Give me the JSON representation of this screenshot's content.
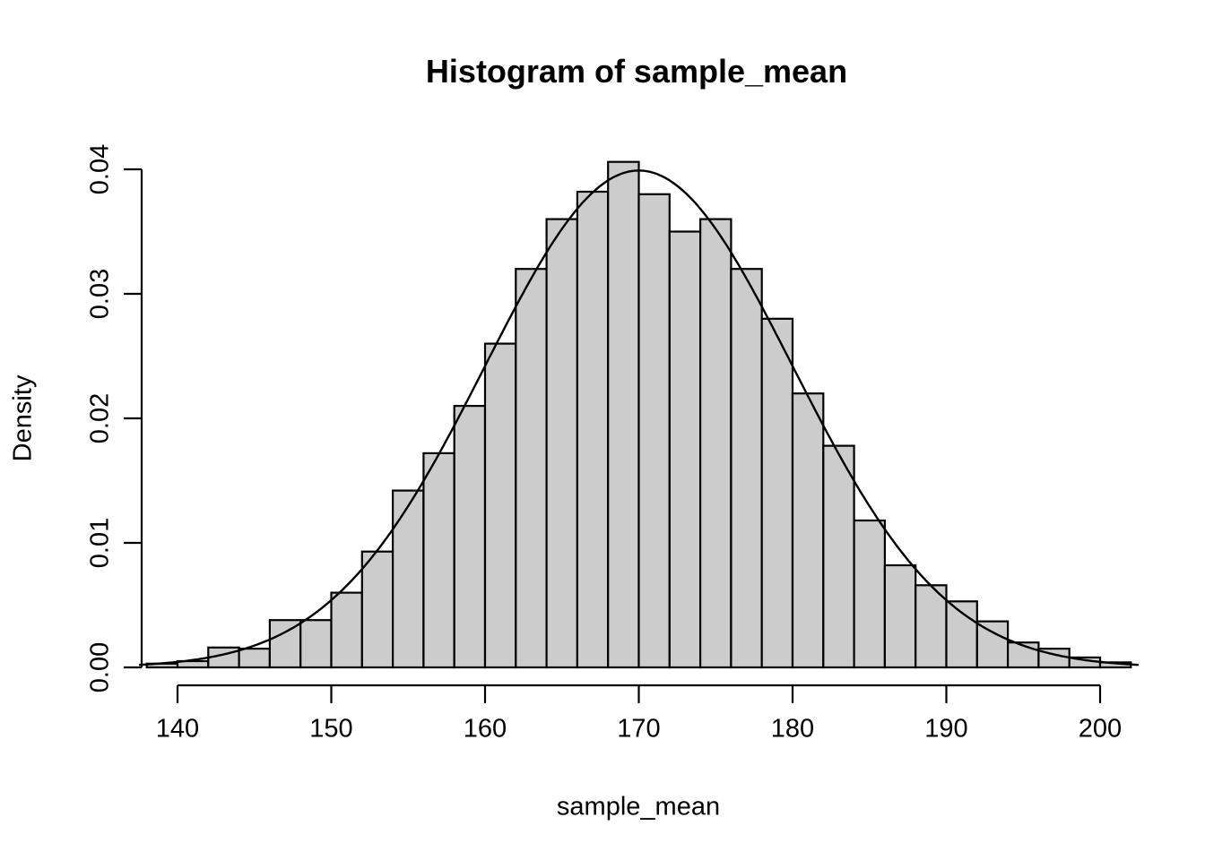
{
  "chart_data": {
    "type": "histogram",
    "title": "Histogram of sample_mean",
    "xlabel": "sample_mean",
    "ylabel": "Density",
    "grid": false,
    "legend": "none",
    "bins": {
      "start": 138,
      "width": 2
    },
    "densities": [
      0.0003,
      0.0005,
      0.0016,
      0.0015,
      0.0038,
      0.0038,
      0.006,
      0.0093,
      0.0142,
      0.0172,
      0.021,
      0.026,
      0.032,
      0.036,
      0.0382,
      0.0406,
      0.038,
      0.035,
      0.036,
      0.032,
      0.028,
      0.022,
      0.0178,
      0.0118,
      0.0082,
      0.0066,
      0.0053,
      0.0037,
      0.002,
      0.0015,
      0.0008,
      0.0004
    ],
    "x_ticks": [
      140,
      150,
      160,
      170,
      180,
      190,
      200
    ],
    "x_tick_labels": [
      "140",
      "150",
      "160",
      "170",
      "180",
      "190",
      "200"
    ],
    "y_ticks": [
      0,
      0.01,
      0.02,
      0.03,
      0.04
    ],
    "y_tick_labels": [
      "0.00",
      "0.01",
      "0.02",
      "0.03",
      "0.04"
    ],
    "xlim": [
      137.5,
      202.5
    ],
    "ylim": [
      0,
      0.04
    ],
    "overlay_curve": {
      "type": "normal_density",
      "mean": 170,
      "sd": 10,
      "peak_density": 0.0399
    },
    "colors": {
      "background": "#ffffff",
      "bar_fill": "#cccccc",
      "bar_border": "#000000",
      "curve": "#000000",
      "axis": "#000000",
      "text": "#000000"
    }
  }
}
